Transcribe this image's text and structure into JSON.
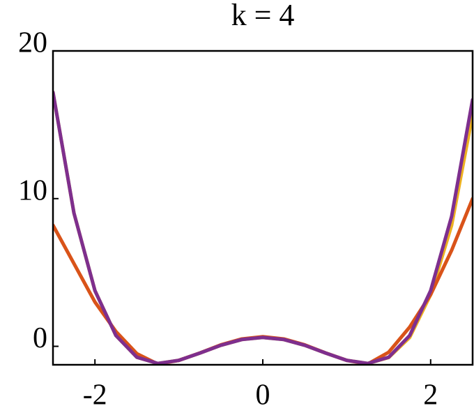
{
  "chart_data": {
    "type": "line",
    "title": "k = 4",
    "x": [
      -2.5,
      -2.25,
      -2,
      -1.75,
      -1.5,
      -1.25,
      -1,
      -0.75,
      -0.5,
      -0.25,
      0,
      0.25,
      0.5,
      0.75,
      1,
      1.25,
      1.5,
      1.75,
      2,
      2.25,
      2.5
    ],
    "series": [
      {
        "color": "#edb120",
        "values": [
          17.2,
          9.02,
          3.77,
          0.73,
          -0.74,
          -1.16,
          -0.95,
          -0.46,
          0.07,
          0.46,
          0.6,
          0.46,
          0.07,
          -0.46,
          -0.95,
          -1.16,
          -0.76,
          0.6,
          3.5,
          8.2,
          15.7
        ]
      },
      {
        "color": "#d95319",
        "values": [
          8.2,
          5.6,
          3.0,
          1.0,
          -0.5,
          -1.2,
          -0.95,
          -0.45,
          0.1,
          0.5,
          0.65,
          0.5,
          0.1,
          -0.45,
          -0.95,
          -1.2,
          -0.4,
          1.3,
          3.5,
          6.5,
          10.0
        ]
      },
      {
        "color": "#7e2f8e",
        "values": [
          17.2,
          9.02,
          3.77,
          0.73,
          -0.74,
          -1.16,
          -0.95,
          -0.46,
          0.07,
          0.46,
          0.6,
          0.46,
          0.07,
          -0.46,
          -0.95,
          -1.16,
          -0.74,
          0.73,
          3.77,
          8.8,
          16.7
        ]
      }
    ],
    "xlim": [
      -2.5,
      2.5
    ],
    "ylim": [
      -1.25,
      20
    ],
    "xticks": [
      -2,
      0,
      2
    ],
    "yticks": [
      0,
      10,
      20
    ],
    "grid": false
  }
}
